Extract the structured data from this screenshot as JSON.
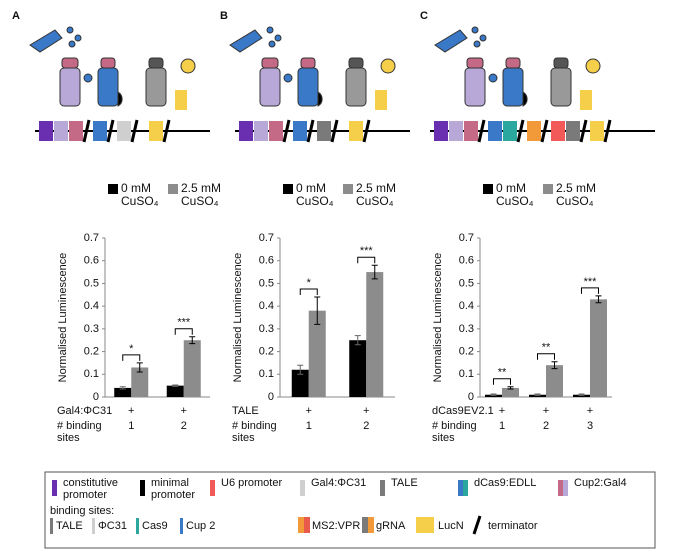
{
  "chart_data": [
    {
      "type": "bar",
      "panel": "A",
      "ylabel": "Normalised Luminescence",
      "ylim": [
        0,
        0.7
      ],
      "yticks": [
        0,
        0.1,
        0.2,
        0.3,
        0.4,
        0.5,
        0.6,
        0.7
      ],
      "construct": "Gal4:ΦC31",
      "construct_marks": [
        "+",
        "+"
      ],
      "sites_label": "# binding sites",
      "categories": [
        "1",
        "2"
      ],
      "series": [
        {
          "name": "0 mM CuSO₄",
          "color": "#000000",
          "values": [
            0.04,
            0.05
          ],
          "errors": [
            0.005,
            0.003
          ]
        },
        {
          "name": "2.5 mM CuSO₄",
          "color": "#8c8c8c",
          "values": [
            0.13,
            0.25
          ],
          "errors": [
            0.02,
            0.015
          ]
        }
      ],
      "significance": [
        "*",
        "***"
      ]
    },
    {
      "type": "bar",
      "panel": "B",
      "ylabel": "Normalised Luminescence",
      "ylim": [
        0,
        0.7
      ],
      "yticks": [
        0,
        0.1,
        0.2,
        0.3,
        0.4,
        0.5,
        0.6,
        0.7
      ],
      "construct": "TALE",
      "construct_marks": [
        "+",
        "+"
      ],
      "sites_label": "# binding sites",
      "categories": [
        "1",
        "2"
      ],
      "series": [
        {
          "name": "0 mM CuSO₄",
          "color": "#000000",
          "values": [
            0.12,
            0.25
          ],
          "errors": [
            0.02,
            0.02
          ]
        },
        {
          "name": "2.5 mM CuSO₄",
          "color": "#8c8c8c",
          "values": [
            0.38,
            0.55
          ],
          "errors": [
            0.06,
            0.03
          ]
        }
      ],
      "significance": [
        "*",
        "***"
      ]
    },
    {
      "type": "bar",
      "panel": "C",
      "ylabel": "Normalised Luminescence",
      "ylim": [
        0,
        0.7
      ],
      "yticks": [
        0,
        0.1,
        0.2,
        0.3,
        0.4,
        0.5,
        0.6,
        0.7
      ],
      "construct": "dCas9EV2.1",
      "construct_marks": [
        "+",
        "+",
        "+"
      ],
      "sites_label": "# binding sites",
      "categories": [
        "1",
        "2",
        "3"
      ],
      "series": [
        {
          "name": "0 mM CuSO₄",
          "color": "#000000",
          "values": [
            0.01,
            0.01,
            0.01
          ],
          "errors": [
            0.003,
            0.003,
            0.003
          ]
        },
        {
          "name": "2.5 mM CuSO₄",
          "color": "#8c8c8c",
          "values": [
            0.04,
            0.14,
            0.43
          ],
          "errors": [
            0.005,
            0.015,
            0.015
          ]
        }
      ],
      "significance": [
        "**",
        "**",
        "***"
      ]
    }
  ],
  "key": {
    "items": [
      {
        "label": "constitutive promoter",
        "colors": [
          "#6a2fb0"
        ]
      },
      {
        "label": "minimal promoter",
        "colors": [
          "#000000"
        ]
      },
      {
        "label": "U6 promoter",
        "colors": [
          "#f25a5a"
        ]
      },
      {
        "label": "Gal4:ΦC31",
        "colors": [
          "#cfcfcf"
        ]
      },
      {
        "label": "TALE",
        "colors": [
          "#7a7a7a"
        ]
      },
      {
        "label": "dCas9:EDLL",
        "colors": [
          "#3a78c8",
          "#2aa8a0"
        ]
      },
      {
        "label": "Cup2:Gal4",
        "colors": [
          "#c46a86",
          "#b8a8d8"
        ]
      }
    ],
    "binding_title": "binding sites:",
    "binding": [
      {
        "label": "TALE",
        "colors": [
          "#7a7a7a"
        ]
      },
      {
        "label": "ΦC31",
        "colors": [
          "#cfcfcf"
        ]
      },
      {
        "label": "Cas9",
        "colors": [
          "#2aa8a0"
        ]
      },
      {
        "label": "Cup 2",
        "colors": [
          "#3a78c8"
        ]
      }
    ],
    "extra": [
      {
        "label": "MS2:VPR",
        "colors": [
          "#f29a3a",
          "#e85a4a"
        ]
      },
      {
        "label": "gRNA",
        "colors": [
          "#7a7a7a",
          "#f29a3a"
        ]
      },
      {
        "label": "LucN",
        "colors": [
          "#f5cf4a"
        ]
      },
      {
        "label": "terminator",
        "colors": [
          "#000000"
        ]
      }
    ]
  }
}
